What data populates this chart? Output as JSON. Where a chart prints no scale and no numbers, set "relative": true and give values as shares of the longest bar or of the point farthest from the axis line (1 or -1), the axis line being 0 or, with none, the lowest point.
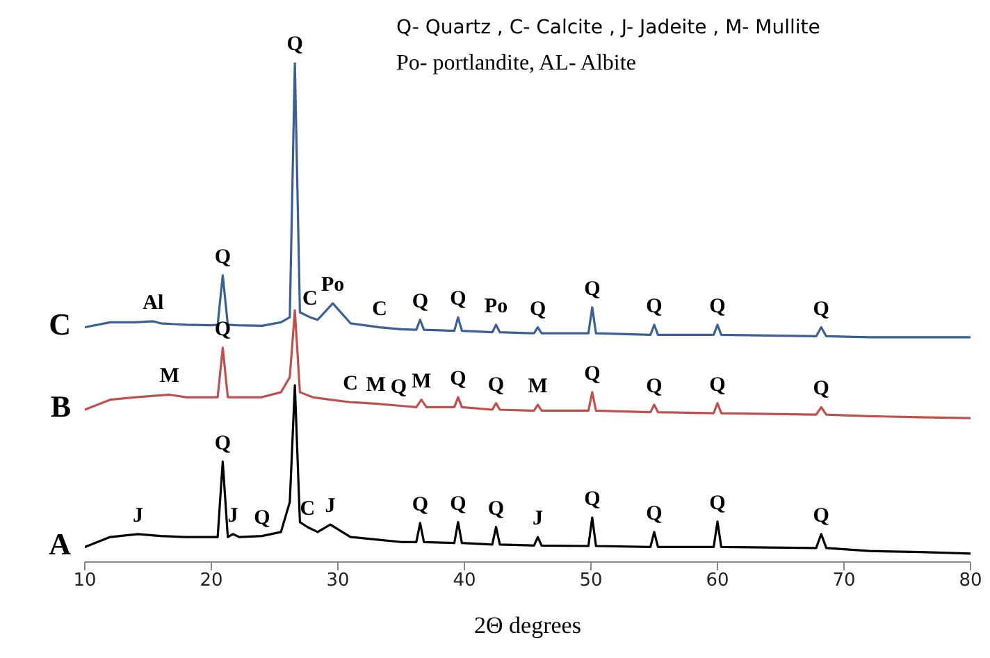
{
  "chart_data": {
    "type": "line",
    "relative": true,
    "xlabel": "2Θ degrees",
    "xlim": [
      10,
      80
    ],
    "xticks": [
      10,
      20,
      30,
      40,
      50,
      60,
      70,
      80
    ],
    "grid": false,
    "legend": false,
    "series": [
      {
        "name": "C",
        "color": "#3a6096",
        "x": [
          10,
          12,
          14,
          15.4,
          16,
          18,
          20,
          20.5,
          20.9,
          21.3,
          22,
          24,
          25.5,
          26.2,
          26.6,
          27.0,
          27.8,
          28.4,
          29.6,
          31,
          33.3,
          35,
          36.2,
          36.5,
          36.8,
          39.2,
          39.5,
          39.8,
          42.2,
          42.5,
          42.8,
          45.5,
          45.8,
          46.1,
          49.8,
          50.1,
          50.4,
          54.7,
          55,
          55.3,
          59.7,
          60,
          60.3,
          67.8,
          68.2,
          68.6,
          72,
          76,
          80
        ],
        "values": [
          0.47,
          0.48,
          0.48,
          0.482,
          0.478,
          0.475,
          0.474,
          0.475,
          0.574,
          0.475,
          0.474,
          0.473,
          0.48,
          0.49,
          1.0,
          0.5,
          0.49,
          0.485,
          0.518,
          0.478,
          0.47,
          0.466,
          0.465,
          0.485,
          0.465,
          0.463,
          0.49,
          0.463,
          0.46,
          0.475,
          0.46,
          0.458,
          0.47,
          0.458,
          0.458,
          0.51,
          0.458,
          0.455,
          0.475,
          0.455,
          0.455,
          0.475,
          0.455,
          0.452,
          0.47,
          0.452,
          0.45,
          0.45,
          0.45
        ]
      },
      {
        "name": "B",
        "color": "#c0504d",
        "x": [
          10,
          12,
          14,
          16.7,
          18,
          20,
          20.5,
          20.9,
          21.3,
          22,
          24,
          25.5,
          26.2,
          26.6,
          27.0,
          28,
          29.4,
          31,
          33,
          34.8,
          36.2,
          36.6,
          37.0,
          39.2,
          39.5,
          39.8,
          42.2,
          42.5,
          42.8,
          45.5,
          45.8,
          46.1,
          49.8,
          50.1,
          50.4,
          54.7,
          55,
          55.3,
          59.7,
          60,
          60.3,
          67.8,
          68.2,
          68.6,
          72,
          76,
          80
        ],
        "values": [
          0.305,
          0.325,
          0.33,
          0.335,
          0.33,
          0.33,
          0.33,
          0.429,
          0.33,
          0.33,
          0.33,
          0.34,
          0.37,
          0.504,
          0.34,
          0.33,
          0.325,
          0.32,
          0.317,
          0.313,
          0.31,
          0.325,
          0.31,
          0.31,
          0.33,
          0.31,
          0.305,
          0.318,
          0.305,
          0.303,
          0.315,
          0.303,
          0.303,
          0.34,
          0.303,
          0.3,
          0.315,
          0.3,
          0.298,
          0.318,
          0.298,
          0.295,
          0.31,
          0.295,
          0.292,
          0.29,
          0.288
        ]
      },
      {
        "name": "A",
        "color": "#000000",
        "x": [
          10,
          12,
          14.2,
          16,
          18,
          20,
          20.5,
          20.9,
          21.3,
          21.7,
          22.2,
          24,
          25.5,
          26.2,
          26.6,
          27.0,
          27.6,
          28.4,
          29.4,
          31,
          33,
          35,
          36.2,
          36.5,
          36.8,
          39.2,
          39.5,
          39.8,
          42.2,
          42.5,
          42.8,
          45.5,
          45.8,
          46.1,
          49.8,
          50.1,
          50.4,
          54.7,
          55,
          55.3,
          59.7,
          60,
          60.3,
          67.8,
          68.2,
          68.6,
          72,
          76,
          80
        ],
        "values": [
          0.03,
          0.05,
          0.056,
          0.052,
          0.05,
          0.05,
          0.05,
          0.201,
          0.05,
          0.056,
          0.05,
          0.052,
          0.06,
          0.12,
          0.354,
          0.08,
          0.07,
          0.06,
          0.075,
          0.05,
          0.045,
          0.04,
          0.04,
          0.078,
          0.04,
          0.038,
          0.08,
          0.038,
          0.035,
          0.07,
          0.035,
          0.033,
          0.05,
          0.033,
          0.032,
          0.089,
          0.032,
          0.03,
          0.06,
          0.03,
          0.03,
          0.081,
          0.03,
          0.028,
          0.056,
          0.028,
          0.022,
          0.02,
          0.017
        ]
      }
    ],
    "annotations": [
      "Q- Quartz , C- Calcite , J- Jadeite ,  M- Mullite",
      "Po- portlandite, AL- Albite",
      {
        "text": "Al",
        "x": 15.4,
        "y": 0.482
      },
      {
        "text": "Q",
        "x": 20.9,
        "y": 0.574
      },
      {
        "text": "Q",
        "x": 26.6,
        "y": 1.0
      },
      {
        "text": "C",
        "x": 27.8,
        "y": 0.49
      },
      {
        "text": "Po",
        "x": 29.6,
        "y": 0.518
      },
      {
        "text": "C",
        "x": 33.3,
        "y": 0.47
      },
      {
        "text": "Q",
        "x": 36.5,
        "y": 0.485
      },
      {
        "text": "Q",
        "x": 39.5,
        "y": 0.49
      },
      {
        "text": "Po",
        "x": 42.5,
        "y": 0.475
      },
      {
        "text": "Q",
        "x": 45.8,
        "y": 0.47
      },
      {
        "text": "Q",
        "x": 50.1,
        "y": 0.51
      },
      {
        "text": "Q",
        "x": 55,
        "y": 0.475
      },
      {
        "text": "Q",
        "x": 60,
        "y": 0.475
      },
      {
        "text": "Q",
        "x": 68.2,
        "y": 0.47
      },
      {
        "text": "M",
        "x": 16.7,
        "y": 0.335
      },
      {
        "text": "Q",
        "x": 20.9,
        "y": 0.429
      },
      {
        "text": "C",
        "x": 31,
        "y": 0.32
      },
      {
        "text": "M",
        "x": 33,
        "y": 0.317
      },
      {
        "text": "Q",
        "x": 34.8,
        "y": 0.313
      },
      {
        "text": "M",
        "x": 36.6,
        "y": 0.325
      },
      {
        "text": "Q",
        "x": 39.5,
        "y": 0.33
      },
      {
        "text": "Q",
        "x": 42.5,
        "y": 0.318
      },
      {
        "text": "M",
        "x": 45.8,
        "y": 0.315
      },
      {
        "text": "Q",
        "x": 50.1,
        "y": 0.34
      },
      {
        "text": "Q",
        "x": 55,
        "y": 0.315
      },
      {
        "text": "Q",
        "x": 60,
        "y": 0.318
      },
      {
        "text": "Q",
        "x": 68.2,
        "y": 0.31
      },
      {
        "text": "J",
        "x": 14.2,
        "y": 0.056
      },
      {
        "text": "Q",
        "x": 20.9,
        "y": 0.201
      },
      {
        "text": "J",
        "x": 21.7,
        "y": 0.056
      },
      {
        "text": "Q",
        "x": 24,
        "y": 0.052
      },
      {
        "text": "C",
        "x": 27.6,
        "y": 0.07
      },
      {
        "text": "J",
        "x": 29.4,
        "y": 0.075
      },
      {
        "text": "Q",
        "x": 36.5,
        "y": 0.078
      },
      {
        "text": "Q",
        "x": 39.5,
        "y": 0.08
      },
      {
        "text": "Q",
        "x": 42.5,
        "y": 0.07
      },
      {
        "text": "J",
        "x": 45.8,
        "y": 0.05
      },
      {
        "text": "Q",
        "x": 50.1,
        "y": 0.089
      },
      {
        "text": "Q",
        "x": 55,
        "y": 0.06
      },
      {
        "text": "Q",
        "x": 60,
        "y": 0.081
      },
      {
        "text": "Q",
        "x": 68.2,
        "y": 0.056
      }
    ]
  }
}
